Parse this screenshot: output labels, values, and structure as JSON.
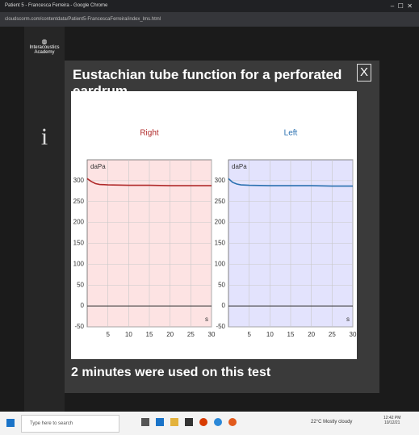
{
  "window_title": "Patient 5 - Francesca Ferreira - Google Chrome",
  "url": "cloudscorm.com/contentdata/Patient5-FrancescaFerreira/index_lms.html",
  "sidebar": {
    "logo": "Interacoustics",
    "logo_sub": "Academy",
    "info_icon": "i"
  },
  "modal": {
    "title": "Eustachian tube function for a perforated eardrum",
    "close": "X",
    "footer": "2 minutes were used on this test"
  },
  "taskbar": {
    "search": "Type here to search",
    "weather": "22°C Mostly cloudy",
    "time": "12:42 PM",
    "date": "10/12/21"
  },
  "chart_data": [
    {
      "type": "line",
      "title": "Right",
      "y_label": "daPa",
      "x_label": "s",
      "background": "#fde3e3",
      "x": [
        0,
        1,
        2,
        3,
        5,
        10,
        15,
        20,
        25,
        30
      ],
      "series": [
        {
          "color": "#b02a2a",
          "values": [
            305,
            298,
            293,
            291,
            290,
            289,
            289,
            288,
            288,
            288
          ]
        }
      ],
      "xlim": [
        0,
        30
      ],
      "xticks": [
        5,
        10,
        15,
        20,
        25,
        30
      ],
      "ylim": [
        -50,
        350
      ],
      "yticks": [
        -50,
        0,
        50,
        100,
        150,
        200,
        250,
        300
      ],
      "grid": true
    },
    {
      "type": "line",
      "title": "Left",
      "y_label": "daPa",
      "x_label": "s",
      "background": "#e3e3fd",
      "x": [
        0,
        1,
        2,
        3,
        5,
        10,
        15,
        20,
        25,
        30
      ],
      "series": [
        {
          "color": "#2a70b0",
          "values": [
            305,
            296,
            292,
            290,
            289,
            288,
            288,
            288,
            287,
            287
          ]
        }
      ],
      "xlim": [
        0,
        30
      ],
      "xticks": [
        5,
        10,
        15,
        20,
        25,
        30
      ],
      "ylim": [
        -50,
        350
      ],
      "yticks": [
        -50,
        0,
        50,
        100,
        150,
        200,
        250,
        300
      ],
      "grid": true
    }
  ]
}
